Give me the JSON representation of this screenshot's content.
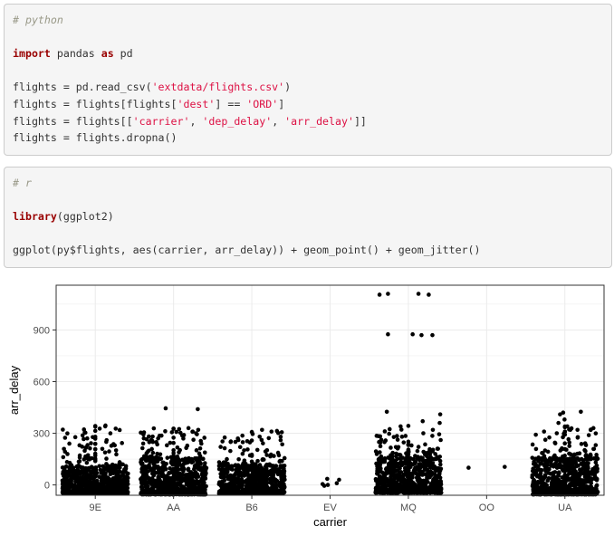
{
  "python_block": {
    "comment": "# python",
    "import_kw": "import",
    "import_mod": " pandas ",
    "as_kw": "as",
    "import_alias": " pd",
    "line3_a": "flights = pd.read_csv(",
    "line3_str": "'extdata/flights.csv'",
    "line3_b": ")",
    "line4_a": "flights = flights[flights[",
    "line4_str1": "'dest'",
    "line4_b": "] == ",
    "line4_str2": "'ORD'",
    "line4_c": "]",
    "line5_a": "flights = flights[[",
    "line5_str1": "'carrier'",
    "line5_b": ", ",
    "line5_str2": "'dep_delay'",
    "line5_c": ", ",
    "line5_str3": "'arr_delay'",
    "line5_d": "]]",
    "line6": "flights = flights.dropna()"
  },
  "r_block": {
    "comment": "# r",
    "lib_fn": "library",
    "lib_arg": "(ggplot2)",
    "ggplot_line": "ggplot(py$flights, aes(carrier, arr_delay)) + geom_point() + geom_jitter()"
  },
  "chart_data": {
    "type": "scatter",
    "xlabel": "carrier",
    "ylabel": "arr_delay",
    "categories": [
      "9E",
      "AA",
      "B6",
      "EV",
      "MQ",
      "OO",
      "UA"
    ],
    "yticks": [
      0,
      300,
      600,
      900
    ],
    "ylim": [
      -60,
      1160
    ],
    "grid": true,
    "jitter": true,
    "point_color": "#000000",
    "panel_background": "#ffffff",
    "grid_color": "#ebebeb",
    "series": [
      {
        "carrier": "9E",
        "typical_range": [
          -50,
          100
        ],
        "max": 345,
        "outliers": [
          345,
          340,
          260,
          250,
          240,
          230
        ]
      },
      {
        "carrier": "AA",
        "typical_range": [
          -55,
          150
        ],
        "max": 445,
        "outliers": [
          445,
          440,
          330,
          320,
          310,
          300,
          290,
          270
        ]
      },
      {
        "carrier": "B6",
        "typical_range": [
          -50,
          110
        ],
        "max": 320,
        "outliers": [
          320,
          310,
          280,
          270,
          250
        ]
      },
      {
        "carrier": "EV",
        "values": [
          35,
          30,
          10,
          5,
          0,
          -5
        ]
      },
      {
        "carrier": "MQ",
        "typical_range": [
          -45,
          150
        ],
        "max": 1110,
        "outliers": [
          1110,
          1105,
          875,
          870,
          425,
          410,
          370,
          360,
          340,
          320,
          300
        ]
      },
      {
        "carrier": "OO",
        "values": [
          100,
          105
        ]
      },
      {
        "carrier": "UA",
        "typical_range": [
          -55,
          150
        ],
        "max": 425,
        "outliers": [
          425,
          420,
          410,
          380,
          360,
          340,
          330,
          320,
          310,
          300
        ]
      }
    ]
  }
}
